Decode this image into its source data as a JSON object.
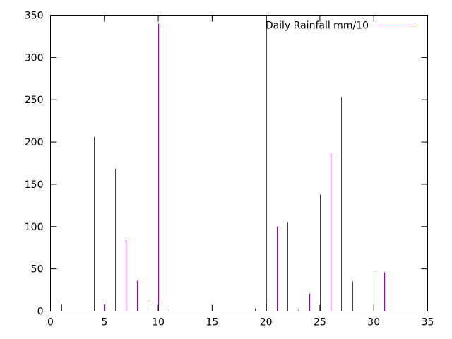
{
  "chart_data": {
    "type": "bar",
    "legend": {
      "label": "Daily Rainfall mm/10",
      "placement": "top-right",
      "color": "#9400d3"
    },
    "series": [
      {
        "name": "Daily Rainfall mm/10",
        "color": "#9400d3",
        "x": [
          1,
          4,
          5,
          6,
          7,
          8,
          9,
          10,
          11,
          19,
          20,
          21,
          22,
          23,
          24,
          25,
          26,
          27,
          28,
          30,
          31
        ],
        "values": [
          8,
          206,
          8,
          168,
          84,
          36,
          13,
          340,
          1,
          3,
          350,
          100,
          105,
          1,
          21,
          138,
          187,
          253,
          35,
          45,
          46
        ]
      }
    ],
    "xlim": [
      0,
      35
    ],
    "ylim": [
      0,
      350
    ],
    "xticks": [
      0,
      5,
      10,
      15,
      20,
      25,
      30,
      35
    ],
    "yticks": [
      0,
      50,
      100,
      150,
      200,
      250,
      300,
      350
    ],
    "grid": false
  }
}
